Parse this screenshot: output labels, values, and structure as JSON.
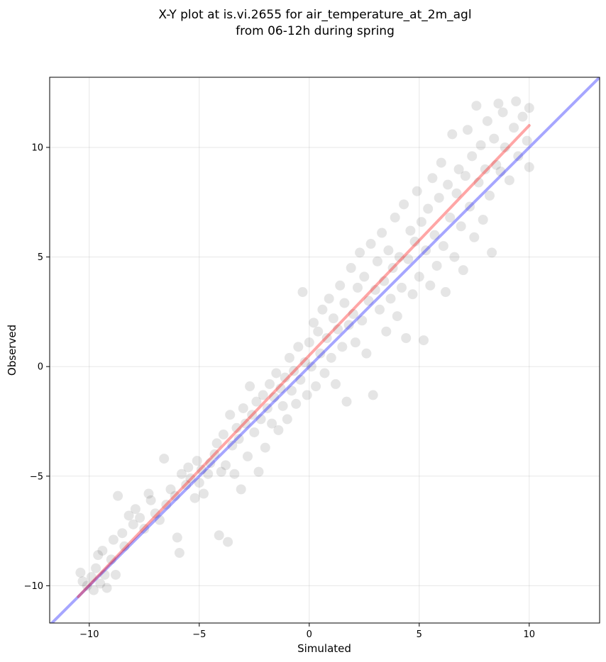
{
  "chart_data": {
    "type": "scatter",
    "title_line1": "X-Y plot at is.vi.2655 for air_temperature_at_2m_agl",
    "title_line2": "from 06-12h during spring",
    "xlabel": "Simulated",
    "ylabel": "Observed",
    "xlim": [
      -11.8,
      13.2
    ],
    "ylim": [
      -11.7,
      13.2
    ],
    "xticks": [
      -10,
      -5,
      0,
      5,
      10
    ],
    "yticks": [
      -10,
      -5,
      0,
      5,
      10
    ],
    "xtick_labels": [
      "−10",
      "−5",
      "0",
      "5",
      "10"
    ],
    "ytick_labels": [
      "−10",
      "−5",
      "0",
      "5",
      "10"
    ],
    "grid": true,
    "point_color": "#000000",
    "point_alpha": 0.1,
    "one_to_one_line": {
      "color": "#0000ff",
      "x": [
        -11.8,
        13.2
      ],
      "y": [
        -11.8,
        13.2
      ]
    },
    "fit_line": {
      "color": "#ff0000",
      "x": [
        -10.5,
        10.0
      ],
      "y": [
        -10.5,
        11.0
      ]
    },
    "points": [
      [
        -10.4,
        -9.4
      ],
      [
        -10.3,
        -9.8
      ],
      [
        -10.1,
        -10.0
      ],
      [
        -9.9,
        -9.6
      ],
      [
        -9.8,
        -10.2
      ],
      [
        -9.7,
        -9.2
      ],
      [
        -9.6,
        -8.6
      ],
      [
        -9.5,
        -9.9
      ],
      [
        -9.4,
        -8.4
      ],
      [
        -9.3,
        -9.5
      ],
      [
        -9.2,
        -10.1
      ],
      [
        -9.0,
        -8.8
      ],
      [
        -8.9,
        -7.9
      ],
      [
        -8.8,
        -9.5
      ],
      [
        -8.7,
        -5.9
      ],
      [
        -8.5,
        -7.6
      ],
      [
        -8.4,
        -8.2
      ],
      [
        -8.2,
        -6.8
      ],
      [
        -8.0,
        -7.2
      ],
      [
        -7.9,
        -6.5
      ],
      [
        -7.7,
        -6.9
      ],
      [
        -7.5,
        -7.4
      ],
      [
        -7.3,
        -5.8
      ],
      [
        -7.2,
        -6.1
      ],
      [
        -7.0,
        -6.7
      ],
      [
        -6.8,
        -7.0
      ],
      [
        -6.6,
        -4.2
      ],
      [
        -6.5,
        -6.3
      ],
      [
        -6.3,
        -5.6
      ],
      [
        -6.1,
        -5.9
      ],
      [
        -6.0,
        -7.8
      ],
      [
        -5.9,
        -8.5
      ],
      [
        -5.8,
        -4.9
      ],
      [
        -5.6,
        -5.4
      ],
      [
        -5.5,
        -4.6
      ],
      [
        -5.4,
        -5.1
      ],
      [
        -5.2,
        -6.0
      ],
      [
        -5.1,
        -4.3
      ],
      [
        -5.0,
        -5.3
      ],
      [
        -4.9,
        -4.7
      ],
      [
        -4.8,
        -5.8
      ],
      [
        -4.6,
        -4.9
      ],
      [
        -4.5,
        -4.4
      ],
      [
        -4.3,
        -4.0
      ],
      [
        -4.2,
        -3.5
      ],
      [
        -4.1,
        -7.7
      ],
      [
        -4.0,
        -4.8
      ],
      [
        -3.9,
        -3.1
      ],
      [
        -3.8,
        -4.5
      ],
      [
        -3.7,
        -8.0
      ],
      [
        -3.6,
        -2.2
      ],
      [
        -3.5,
        -3.6
      ],
      [
        -3.4,
        -4.9
      ],
      [
        -3.3,
        -2.8
      ],
      [
        -3.2,
        -3.3
      ],
      [
        -3.1,
        -5.6
      ],
      [
        -3.0,
        -1.9
      ],
      [
        -2.9,
        -2.6
      ],
      [
        -2.8,
        -4.1
      ],
      [
        -2.7,
        -0.9
      ],
      [
        -2.6,
        -2.2
      ],
      [
        -2.5,
        -3.0
      ],
      [
        -2.4,
        -1.6
      ],
      [
        -2.3,
        -4.8
      ],
      [
        -2.2,
        -2.4
      ],
      [
        -2.1,
        -1.3
      ],
      [
        -2.0,
        -3.7
      ],
      [
        -1.9,
        -1.9
      ],
      [
        -1.8,
        -0.8
      ],
      [
        -1.7,
        -2.6
      ],
      [
        -1.6,
        -1.4
      ],
      [
        -1.5,
        -0.3
      ],
      [
        -1.4,
        -2.9
      ],
      [
        -1.3,
        -1.0
      ],
      [
        -1.2,
        -1.8
      ],
      [
        -1.1,
        -0.5
      ],
      [
        -1.0,
        -2.4
      ],
      [
        -0.9,
        0.4
      ],
      [
        -0.8,
        -1.1
      ],
      [
        -0.7,
        -0.2
      ],
      [
        -0.6,
        -1.7
      ],
      [
        -0.5,
        0.9
      ],
      [
        -0.4,
        -0.6
      ],
      [
        -0.3,
        3.4
      ],
      [
        -0.2,
        0.2
      ],
      [
        -0.1,
        -1.3
      ],
      [
        0.0,
        1.1
      ],
      [
        0.1,
        0.0
      ],
      [
        0.2,
        2.0
      ],
      [
        0.3,
        -0.9
      ],
      [
        0.4,
        1.6
      ],
      [
        0.5,
        0.6
      ],
      [
        0.6,
        2.6
      ],
      [
        0.7,
        -0.3
      ],
      [
        0.8,
        1.3
      ],
      [
        0.9,
        3.1
      ],
      [
        1.0,
        0.4
      ],
      [
        1.1,
        2.2
      ],
      [
        1.2,
        -0.8
      ],
      [
        1.3,
        1.7
      ],
      [
        1.4,
        3.7
      ],
      [
        1.5,
        0.9
      ],
      [
        1.6,
        2.9
      ],
      [
        1.7,
        -1.6
      ],
      [
        1.8,
        1.9
      ],
      [
        1.9,
        4.5
      ],
      [
        2.0,
        2.4
      ],
      [
        2.1,
        1.1
      ],
      [
        2.2,
        3.6
      ],
      [
        2.3,
        5.2
      ],
      [
        2.4,
        2.1
      ],
      [
        2.5,
        4.1
      ],
      [
        2.6,
        0.6
      ],
      [
        2.7,
        3.0
      ],
      [
        2.8,
        5.6
      ],
      [
        2.9,
        -1.3
      ],
      [
        3.0,
        3.5
      ],
      [
        3.1,
        4.8
      ],
      [
        3.2,
        2.6
      ],
      [
        3.3,
        6.1
      ],
      [
        3.4,
        3.9
      ],
      [
        3.5,
        1.6
      ],
      [
        3.6,
        5.3
      ],
      [
        3.7,
        3.1
      ],
      [
        3.8,
        4.5
      ],
      [
        3.9,
        6.8
      ],
      [
        4.0,
        2.3
      ],
      [
        4.1,
        5.0
      ],
      [
        4.2,
        3.6
      ],
      [
        4.3,
        7.4
      ],
      [
        4.4,
        1.3
      ],
      [
        4.5,
        4.9
      ],
      [
        4.6,
        6.2
      ],
      [
        4.7,
        3.3
      ],
      [
        4.8,
        5.7
      ],
      [
        4.9,
        8.0
      ],
      [
        5.0,
        4.1
      ],
      [
        5.1,
        6.6
      ],
      [
        5.2,
        1.2
      ],
      [
        5.3,
        5.3
      ],
      [
        5.4,
        7.2
      ],
      [
        5.5,
        3.7
      ],
      [
        5.6,
        8.6
      ],
      [
        5.7,
        6.0
      ],
      [
        5.8,
        4.6
      ],
      [
        5.9,
        7.7
      ],
      [
        6.0,
        9.3
      ],
      [
        6.1,
        5.5
      ],
      [
        6.2,
        3.4
      ],
      [
        6.3,
        8.3
      ],
      [
        6.4,
        6.8
      ],
      [
        6.5,
        10.6
      ],
      [
        6.6,
        5.0
      ],
      [
        6.7,
        7.9
      ],
      [
        6.8,
        9.0
      ],
      [
        6.9,
        6.4
      ],
      [
        7.0,
        4.4
      ],
      [
        7.1,
        8.7
      ],
      [
        7.2,
        10.8
      ],
      [
        7.3,
        7.3
      ],
      [
        7.4,
        9.6
      ],
      [
        7.5,
        5.9
      ],
      [
        7.6,
        11.9
      ],
      [
        7.7,
        8.4
      ],
      [
        7.8,
        10.1
      ],
      [
        7.9,
        6.7
      ],
      [
        8.0,
        9.0
      ],
      [
        8.1,
        11.2
      ],
      [
        8.2,
        7.8
      ],
      [
        8.3,
        5.2
      ],
      [
        8.4,
        10.4
      ],
      [
        8.5,
        9.2
      ],
      [
        8.6,
        12.0
      ],
      [
        8.7,
        8.9
      ],
      [
        8.8,
        11.6
      ],
      [
        8.9,
        10.0
      ],
      [
        9.1,
        8.5
      ],
      [
        9.3,
        10.9
      ],
      [
        9.4,
        12.1
      ],
      [
        9.5,
        9.6
      ],
      [
        9.7,
        11.4
      ],
      [
        9.9,
        10.3
      ],
      [
        10.0,
        11.8
      ],
      [
        10.0,
        9.1
      ]
    ]
  }
}
